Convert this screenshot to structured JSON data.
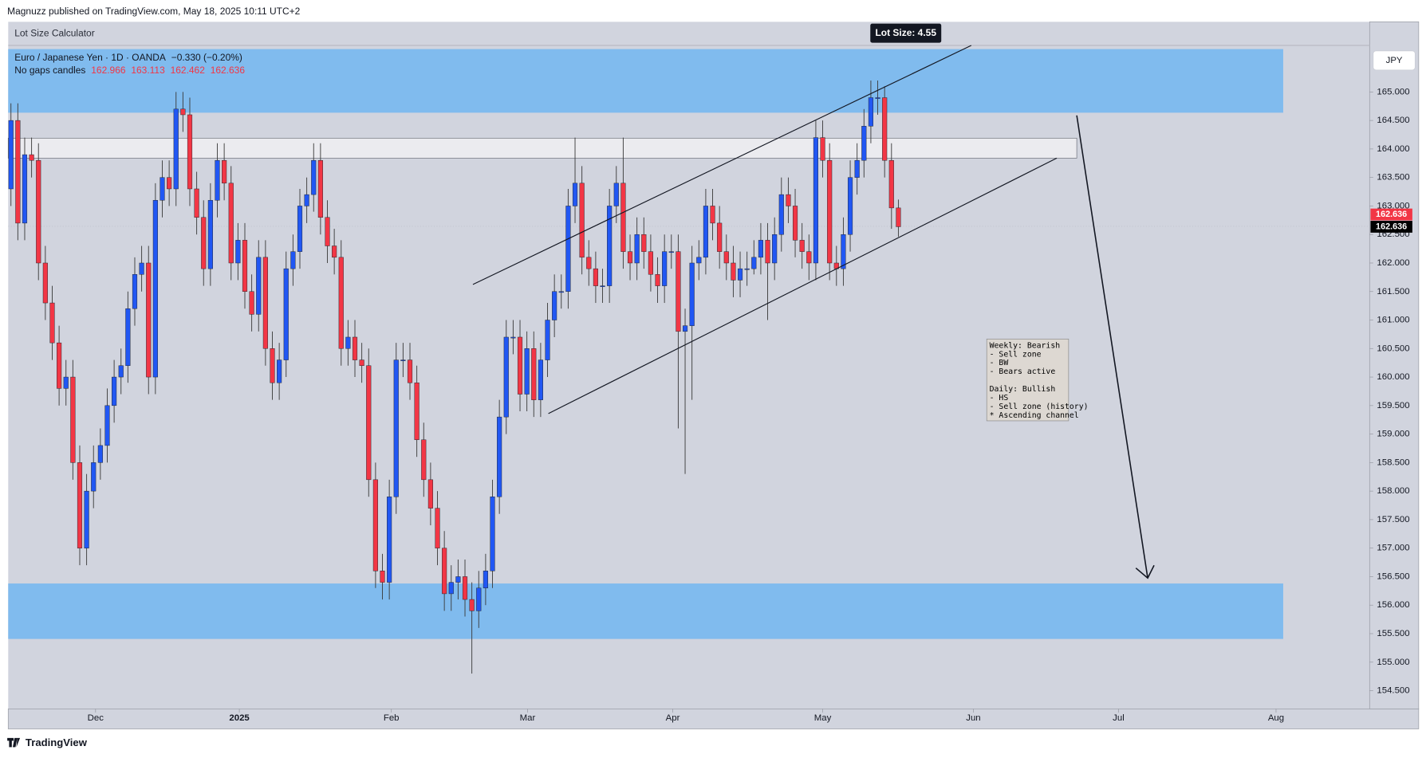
{
  "header": {
    "publisher": "Magnuzz published on TradingView.com, May 18, 2025 10:11 UTC+2"
  },
  "footer": {
    "brand": "TradingView"
  },
  "indicator": {
    "name": "Lot Size Calculator",
    "badge": "Lot Size: 4.55"
  },
  "currency_button": "JPY",
  "chart_data": {
    "type": "candlestick",
    "title": "Euro / Japanese Yen · 1D · OANDA",
    "change": "−0.330 (−0.20%)",
    "subtitle": "No gaps candles",
    "up_color": "#2157f3",
    "down_color": "#f23645",
    "wick_color": "#3a3a3a",
    "grid": false,
    "ylim": [
      154.18,
      166.23
    ],
    "xlim": [
      -0.4,
      197.5
    ],
    "yticks": [
      {
        "value": 165,
        "label": "165.000"
      },
      {
        "value": 164.5,
        "label": "164.500"
      },
      {
        "value": 164,
        "label": "164.000"
      },
      {
        "value": 163.5,
        "label": "163.500"
      },
      {
        "value": 163,
        "label": "163.000"
      },
      {
        "value": 162.5,
        "label": "162.500"
      },
      {
        "value": 162,
        "label": "162.000"
      },
      {
        "value": 161.5,
        "label": "161.500"
      },
      {
        "value": 161,
        "label": "161.000"
      },
      {
        "value": 160.5,
        "label": "160.500"
      },
      {
        "value": 160,
        "label": "160.000"
      },
      {
        "value": 159.5,
        "label": "159.500"
      },
      {
        "value": 159,
        "label": "159.000"
      },
      {
        "value": 158.5,
        "label": "158.500"
      },
      {
        "value": 158,
        "label": "158.000"
      },
      {
        "value": 157.5,
        "label": "157.500"
      },
      {
        "value": 157,
        "label": "157.000"
      },
      {
        "value": 156.5,
        "label": "156.500"
      },
      {
        "value": 156,
        "label": "156.000"
      },
      {
        "value": 155.5,
        "label": "155.500"
      },
      {
        "value": 155,
        "label": "155.000"
      },
      {
        "value": 154.5,
        "label": "154.500"
      }
    ],
    "xticks": [
      {
        "value": 12.3,
        "label": "Dec"
      },
      {
        "value": 33.2,
        "label": "2025"
      },
      {
        "value": 55.3,
        "label": "Feb"
      },
      {
        "value": 75.1,
        "label": "Mar"
      },
      {
        "value": 96.2,
        "label": "Apr"
      },
      {
        "value": 118.0,
        "label": "May"
      },
      {
        "value": 139.9,
        "label": "Jun"
      },
      {
        "value": 161.0,
        "label": "Jul"
      },
      {
        "value": 183.9,
        "label": "Aug"
      }
    ],
    "annotation": [
      "Weekly: Bearish",
      "- Sell zone",
      "- BW",
      "- Bears active",
      "Daily: Bullish",
      "- HS",
      "- Sell zone (history)",
      "* Ascending channel"
    ],
    "candles": [
      [
        163.3,
        164.8,
        163.0,
        164.5
      ],
      [
        164.5,
        164.8,
        162.4,
        162.7
      ],
      [
        162.7,
        164.2,
        162.4,
        163.9
      ],
      [
        163.9,
        164.2,
        163.5,
        163.8
      ],
      [
        163.8,
        164.1,
        161.7,
        162.0
      ],
      [
        162.0,
        162.3,
        161.0,
        161.3
      ],
      [
        161.3,
        161.6,
        160.3,
        160.6
      ],
      [
        160.6,
        160.9,
        159.5,
        159.8
      ],
      [
        159.8,
        160.3,
        159.5,
        160.0
      ],
      [
        160.0,
        160.3,
        158.2,
        158.5
      ],
      [
        158.5,
        158.8,
        156.7,
        157.0
      ],
      [
        157.0,
        158.3,
        156.7,
        158.0
      ],
      [
        158.0,
        158.8,
        157.7,
        158.5
      ],
      [
        158.5,
        159.1,
        158.2,
        158.8
      ],
      [
        158.8,
        159.8,
        158.5,
        159.5
      ],
      [
        159.5,
        160.3,
        159.2,
        160.0
      ],
      [
        160.0,
        160.5,
        159.7,
        160.2
      ],
      [
        160.2,
        161.5,
        159.9,
        161.2
      ],
      [
        161.2,
        162.1,
        160.9,
        161.8
      ],
      [
        161.8,
        162.3,
        161.5,
        162.0
      ],
      [
        162.0,
        162.3,
        159.7,
        160.0
      ],
      [
        160.0,
        163.4,
        159.7,
        163.1
      ],
      [
        163.1,
        163.8,
        162.8,
        163.5
      ],
      [
        163.5,
        163.8,
        163.0,
        163.3
      ],
      [
        163.3,
        165.0,
        163.0,
        164.7
      ],
      [
        164.7,
        165.0,
        164.3,
        164.6
      ],
      [
        164.6,
        164.9,
        163.0,
        163.3
      ],
      [
        163.3,
        163.6,
        162.5,
        162.8
      ],
      [
        162.8,
        163.1,
        161.6,
        161.9
      ],
      [
        161.9,
        163.4,
        161.6,
        163.1
      ],
      [
        163.1,
        164.1,
        162.8,
        163.8
      ],
      [
        163.8,
        164.1,
        163.1,
        163.4
      ],
      [
        163.4,
        163.7,
        161.7,
        162.0
      ],
      [
        162.0,
        162.7,
        161.7,
        162.4
      ],
      [
        162.4,
        162.7,
        161.2,
        161.5
      ],
      [
        161.5,
        161.8,
        160.8,
        161.1
      ],
      [
        161.1,
        162.4,
        160.8,
        162.1
      ],
      [
        162.1,
        162.4,
        160.2,
        160.5
      ],
      [
        160.5,
        160.8,
        159.6,
        159.9
      ],
      [
        159.9,
        160.6,
        159.6,
        160.3
      ],
      [
        160.3,
        162.2,
        160.0,
        161.9
      ],
      [
        161.9,
        162.5,
        161.6,
        162.2
      ],
      [
        162.2,
        163.3,
        161.9,
        163.0
      ],
      [
        163.0,
        163.5,
        162.7,
        163.2
      ],
      [
        163.2,
        164.1,
        162.9,
        163.8
      ],
      [
        163.8,
        164.1,
        162.5,
        162.8
      ],
      [
        162.8,
        163.1,
        162.0,
        162.3
      ],
      [
        162.3,
        162.6,
        161.8,
        162.1
      ],
      [
        162.1,
        162.4,
        160.2,
        160.5
      ],
      [
        160.5,
        161.0,
        160.2,
        160.7
      ],
      [
        160.7,
        161.0,
        160.0,
        160.3
      ],
      [
        160.3,
        160.6,
        159.9,
        160.2
      ],
      [
        160.2,
        160.5,
        157.9,
        158.2
      ],
      [
        158.2,
        158.5,
        156.3,
        156.6
      ],
      [
        156.6,
        156.9,
        156.1,
        156.4
      ],
      [
        156.4,
        158.2,
        156.1,
        157.9
      ],
      [
        157.9,
        160.6,
        157.6,
        160.3
      ],
      [
        160.3,
        160.6,
        160.0,
        160.3
      ],
      [
        160.3,
        160.6,
        159.6,
        159.9
      ],
      [
        159.9,
        160.2,
        158.6,
        158.9
      ],
      [
        158.9,
        159.2,
        157.9,
        158.2
      ],
      [
        158.2,
        158.5,
        157.4,
        157.7
      ],
      [
        157.7,
        158.0,
        156.7,
        157.0
      ],
      [
        157.0,
        157.3,
        155.9,
        156.2
      ],
      [
        156.2,
        156.7,
        155.9,
        156.4
      ],
      [
        156.4,
        156.8,
        156.1,
        156.5
      ],
      [
        156.5,
        156.8,
        155.8,
        156.1
      ],
      [
        156.1,
        156.4,
        154.8,
        155.9
      ],
      [
        155.9,
        156.6,
        155.6,
        156.3
      ],
      [
        156.3,
        156.9,
        156.0,
        156.6
      ],
      [
        156.6,
        158.2,
        156.3,
        157.9
      ],
      [
        157.9,
        159.6,
        157.6,
        159.3
      ],
      [
        159.3,
        161.0,
        159.0,
        160.7
      ],
      [
        160.7,
        161.0,
        160.4,
        160.7
      ],
      [
        160.7,
        161.0,
        159.4,
        159.7
      ],
      [
        159.7,
        160.8,
        159.4,
        160.5
      ],
      [
        160.5,
        160.8,
        159.3,
        159.6
      ],
      [
        159.6,
        160.6,
        159.3,
        160.3
      ],
      [
        160.3,
        161.3,
        160.0,
        161.0
      ],
      [
        161.0,
        161.8,
        160.7,
        161.5
      ],
      [
        161.5,
        161.8,
        161.2,
        161.5
      ],
      [
        161.5,
        163.3,
        161.2,
        163.0
      ],
      [
        163.0,
        164.2,
        162.7,
        163.4
      ],
      [
        163.4,
        163.7,
        161.8,
        162.1
      ],
      [
        162.1,
        162.4,
        161.6,
        161.9
      ],
      [
        161.9,
        162.2,
        161.3,
        161.6
      ],
      [
        161.6,
        161.9,
        161.3,
        161.6
      ],
      [
        161.6,
        163.3,
        161.3,
        163.0
      ],
      [
        163.0,
        163.7,
        162.7,
        163.4
      ],
      [
        163.4,
        164.2,
        161.9,
        162.2
      ],
      [
        162.2,
        162.5,
        161.7,
        162.0
      ],
      [
        162.0,
        162.8,
        161.7,
        162.5
      ],
      [
        162.5,
        162.8,
        161.9,
        162.2
      ],
      [
        162.2,
        162.5,
        161.5,
        161.8
      ],
      [
        161.8,
        162.1,
        161.3,
        161.6
      ],
      [
        161.6,
        162.5,
        161.3,
        162.2
      ],
      [
        162.2,
        162.5,
        161.9,
        162.2
      ],
      [
        162.2,
        162.5,
        159.1,
        160.8
      ],
      [
        160.8,
        161.2,
        158.3,
        160.9
      ],
      [
        160.9,
        162.3,
        159.6,
        162.0
      ],
      [
        162.0,
        162.4,
        161.7,
        162.1
      ],
      [
        162.1,
        163.3,
        161.8,
        163.0
      ],
      [
        163.0,
        163.3,
        162.4,
        162.7
      ],
      [
        162.7,
        163.0,
        161.9,
        162.2
      ],
      [
        162.2,
        162.5,
        161.7,
        162.0
      ],
      [
        162.0,
        162.3,
        161.4,
        161.7
      ],
      [
        161.7,
        162.2,
        161.4,
        161.9
      ],
      [
        161.9,
        162.2,
        161.6,
        161.9
      ],
      [
        161.9,
        162.4,
        161.8,
        162.1
      ],
      [
        162.1,
        162.7,
        161.8,
        162.4
      ],
      [
        162.4,
        162.7,
        161.0,
        162.0
      ],
      [
        162.0,
        162.8,
        161.7,
        162.5
      ],
      [
        162.5,
        163.5,
        162.2,
        163.2
      ],
      [
        163.2,
        163.5,
        162.7,
        163.0
      ],
      [
        163.0,
        163.3,
        162.1,
        162.4
      ],
      [
        162.4,
        162.7,
        161.9,
        162.2
      ],
      [
        162.2,
        162.5,
        161.7,
        162.0
      ],
      [
        162.0,
        164.5,
        161.7,
        164.2
      ],
      [
        164.2,
        164.5,
        163.5,
        163.8
      ],
      [
        163.8,
        164.1,
        161.7,
        162.0
      ],
      [
        162.0,
        162.3,
        161.6,
        161.9
      ],
      [
        161.9,
        162.8,
        161.6,
        162.5
      ],
      [
        162.5,
        163.8,
        162.2,
        163.5
      ],
      [
        163.5,
        164.1,
        163.2,
        163.8
      ],
      [
        163.8,
        164.7,
        163.5,
        164.4
      ],
      [
        164.4,
        165.2,
        164.1,
        164.9
      ],
      [
        164.9,
        165.2,
        164.6,
        164.9
      ],
      [
        164.9,
        165.1,
        163.5,
        163.8
      ],
      [
        163.8,
        164.1,
        162.6,
        162.966
      ],
      [
        162.966,
        163.113,
        162.462,
        162.636
      ]
    ]
  }
}
